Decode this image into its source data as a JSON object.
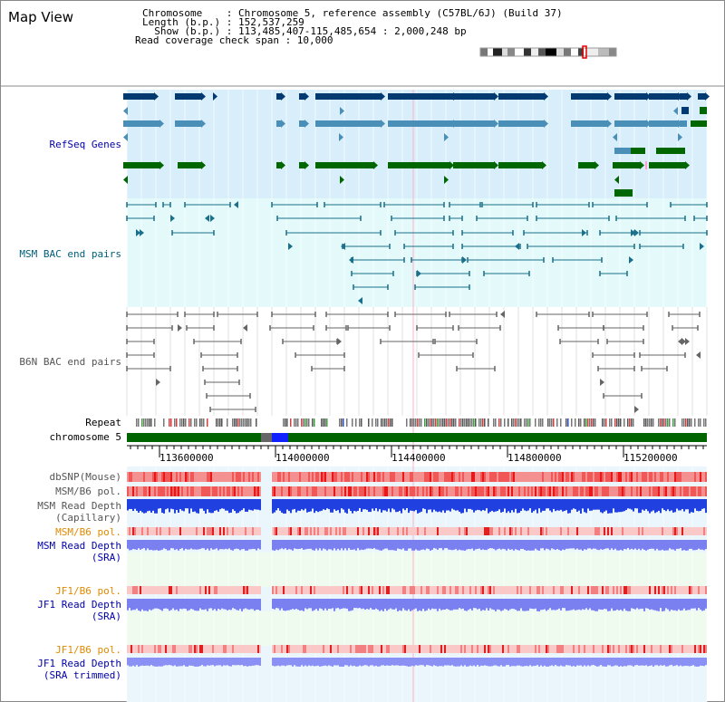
{
  "title": "Map View",
  "header": {
    "chromosome_line": "Chromosome    : Chromosome 5, reference assembly (C57BL/6J) (Build 37)",
    "length_line": "Length (b.p.) : 152,537,259",
    "show_line": "  Show (b.p.) : 113,485,407-115,485,654 : 2,000,248 bp",
    "coverage_line": "Read coverage check span : 10,000"
  },
  "tracks": {
    "refseq": "RefSeq Genes",
    "msm_bac": "MSM BAC end pairs",
    "b6n_bac": "B6N BAC end pairs",
    "repeat": "Repeat",
    "chromosome": "chromosome 5",
    "dbsnp": "dbSNP(Mouse)",
    "msm_b6_pol1": "MSM/B6 pol.",
    "msm_depth_cap_1": "MSM Read Depth",
    "msm_depth_cap_2": "(Capillary)",
    "msm_b6_pol2": "MSM/B6 pol.",
    "msm_depth_sra_1": "MSM Read Depth",
    "msm_depth_sra_2": "(SRA)",
    "jf1_b6_pol1": "JF1/B6 pol.",
    "jf1_depth_sra_1": "JF1 Read Depth",
    "jf1_depth_sra_2": "(SRA)",
    "jf1_b6_pol2": "JF1/B6 pol.",
    "jf1_depth_trim_1": "JF1 Read Depth",
    "jf1_depth_trim_2": "(SRA trimmed)"
  },
  "axis_ticks": [
    "113600000",
    "114000000",
    "114400000",
    "114800000",
    "115200000"
  ],
  "colors": {
    "refseq_dark": "#003a70",
    "refseq_mid": "#4a8fb8",
    "refseq_green": "#006600",
    "refseq_bg": "#d8eefa",
    "msm_bac": "#1a6f8a",
    "b6n_bac": "#666666",
    "chrom_green": "#006400",
    "snp_red": "#f06060",
    "depth_blue": "#2040e0",
    "depth_sra": "#7a80f0"
  }
}
